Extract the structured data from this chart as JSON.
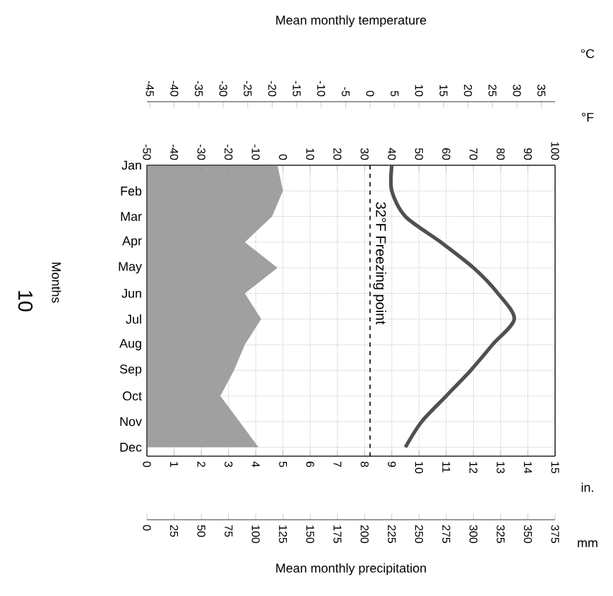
{
  "chart_data": [
    {
      "type": "area",
      "orientation": "horizontal",
      "xlabel": "Mean monthly precipitation",
      "ylabel": "Months",
      "categories": [
        "Jan",
        "Feb",
        "Mar",
        "Apr",
        "May",
        "Jun",
        "Jul",
        "Aug",
        "Sep",
        "Oct",
        "Nov",
        "Dec"
      ],
      "xlim": [
        0,
        15
      ],
      "xticks": [
        0,
        1,
        2,
        3,
        4,
        5,
        6,
        7,
        8,
        9,
        10,
        11,
        12,
        13,
        14,
        15
      ],
      "x2lim": [
        0,
        375
      ],
      "x2ticks": [
        0,
        25,
        50,
        75,
        100,
        125,
        150,
        175,
        200,
        225,
        250,
        275,
        300,
        325,
        350,
        375
      ],
      "series": [
        {
          "color": "#a0a0a0",
          "values": [
            4.8,
            5.0,
            4.6,
            3.6,
            4.8,
            3.6,
            4.2,
            3.6,
            3.2,
            2.7,
            3.4,
            4.1
          ]
        }
      ],
      "grid": true,
      "annotations": [
        "in.",
        "mm",
        "10"
      ]
    },
    {
      "type": "line",
      "orientation": "horizontal",
      "xlabel": "Mean monthly temperature",
      "categories": [
        null,
        null,
        null,
        null,
        null,
        null,
        null,
        null,
        null,
        null,
        null,
        null
      ],
      "xlim": [
        -50,
        100
      ],
      "xticks": [
        -50,
        -40,
        -30,
        -20,
        -10,
        0,
        10,
        20,
        30,
        40,
        50,
        60,
        70,
        80,
        90,
        100
      ],
      "x2lim": [
        -45.6,
        37.8
      ],
      "x2ticks": [
        -45,
        -40,
        -35,
        -30,
        -25,
        -20,
        -15,
        -10,
        -5,
        0,
        5,
        10,
        15,
        20,
        25,
        30,
        35
      ],
      "series": [
        {
          "color": "#505050",
          "values": [
            40,
            40,
            45,
            58,
            70,
            79,
            85,
            77,
            69,
            60,
            51,
            45
          ]
        }
      ],
      "ref_lines": [
        {
          "axis": "x",
          "value": 32,
          "label": "32°F Freezing point",
          "line_style": "dashed"
        }
      ],
      "annotations": [
        "°F",
        "°C"
      ]
    }
  ]
}
